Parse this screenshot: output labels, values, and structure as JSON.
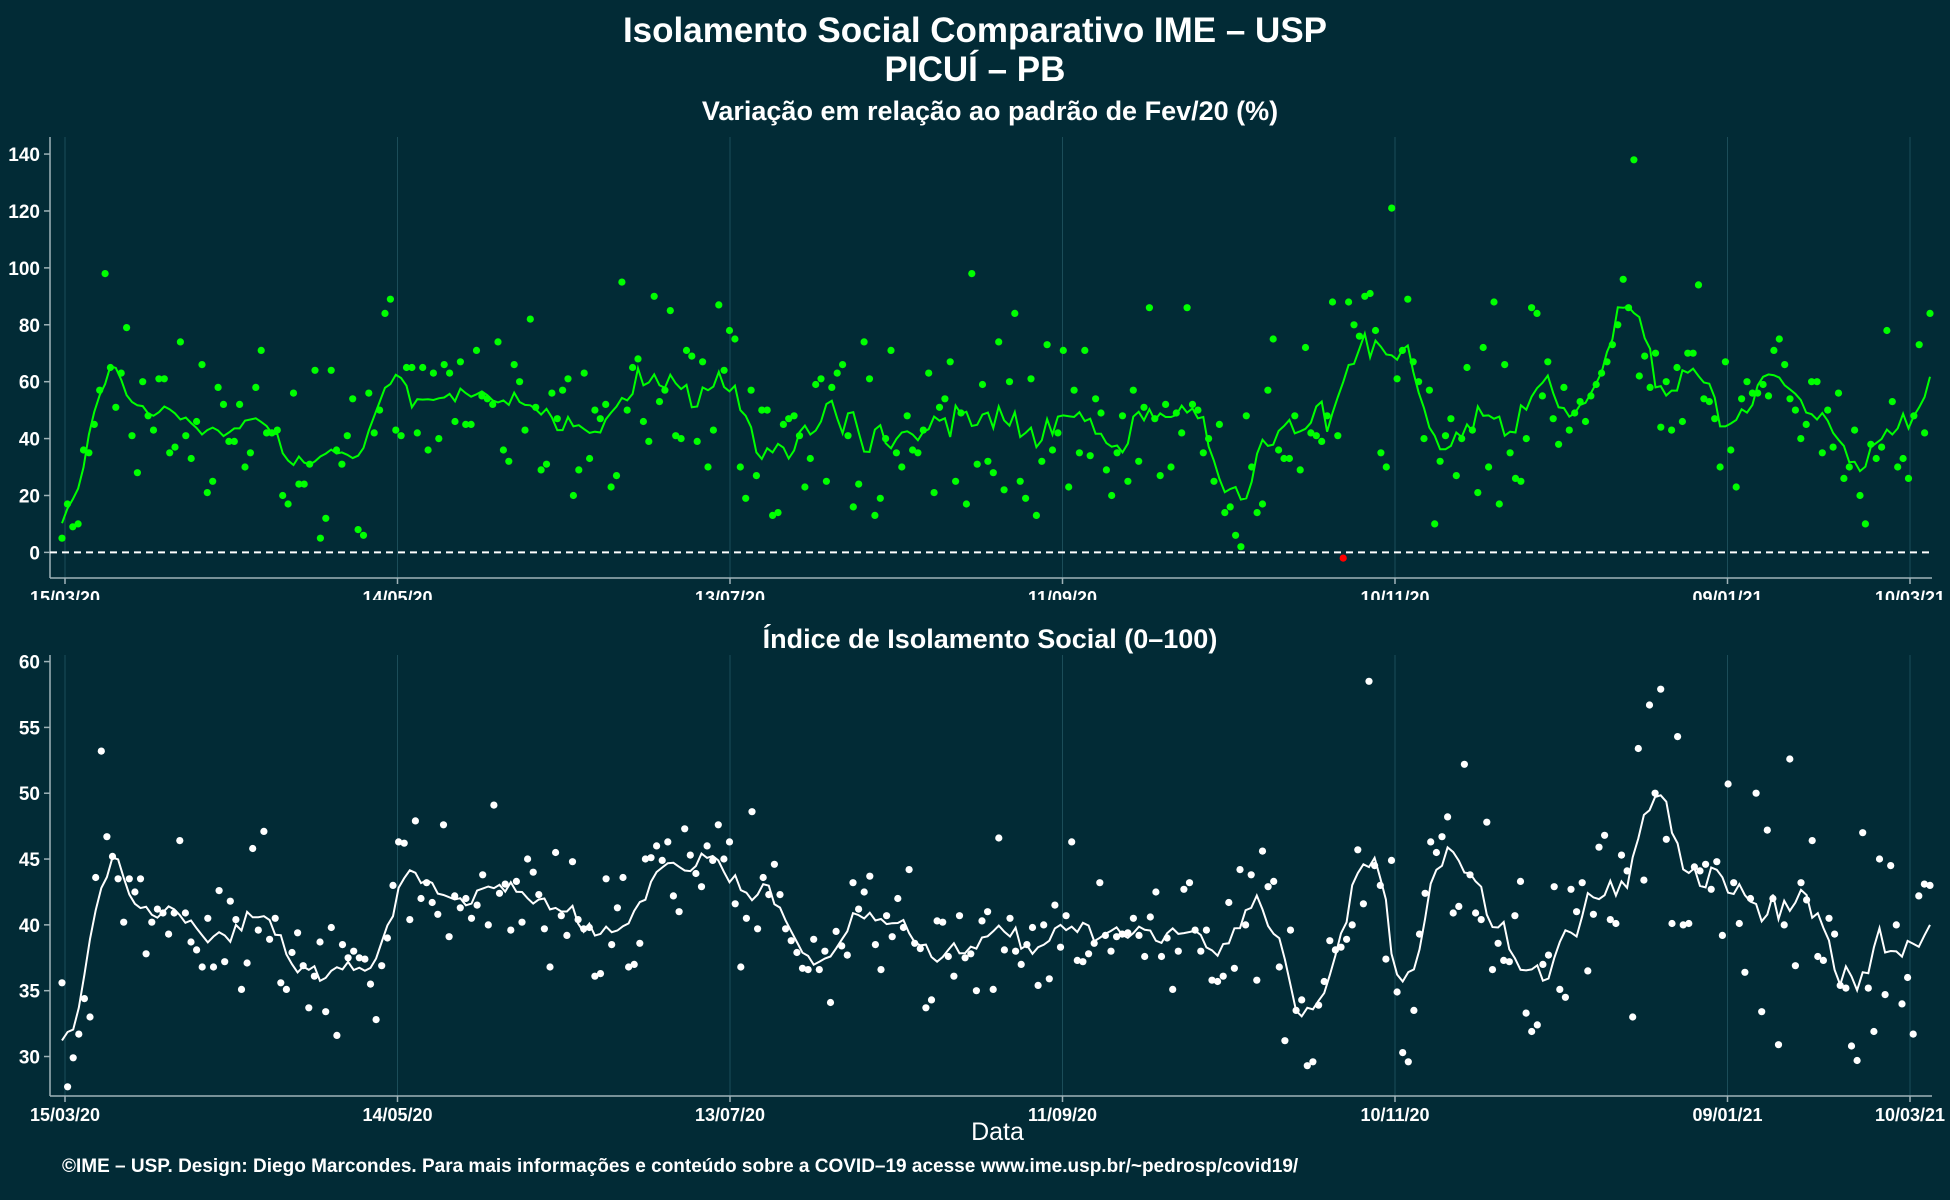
{
  "title_line1": "Isolamento Social Comparativo IME – USP",
  "title_line2": "PICUÍ – PB",
  "xlabel": "Data",
  "footer": "©IME – USP. Design: Diego Marcondes. Para mais informações e conteúdo sobre a COVID–19 acesse www.ime.usp.br/~pedrosp/covid19/",
  "colors": {
    "background": "#022b36",
    "variation": "#00ff00",
    "negative": "#ff0000",
    "index": "#ffffff"
  },
  "chart_data": [
    {
      "type": "scatter",
      "title": "Variação em relação ao padrão de Fev/20 (%)",
      "x_start": "15/03/20",
      "x_tick_labels": [
        "15/03/20",
        "14/05/20",
        "13/07/20",
        "11/09/20",
        "10/11/20",
        "09/01/21",
        "10/03/21"
      ],
      "ylim": [
        -9,
        146
      ],
      "y_ticks": [
        0,
        20,
        40,
        60,
        80,
        100,
        120,
        140
      ],
      "reference_line": 0,
      "series": [
        {
          "values": [
            5,
            17,
            9,
            10,
            36,
            35,
            45,
            57,
            98,
            65,
            51,
            63,
            79,
            41,
            28,
            60,
            48,
            43,
            61,
            61,
            35,
            37,
            74,
            41,
            33,
            46,
            66,
            21,
            25,
            58,
            52,
            39,
            39,
            52,
            30,
            35,
            58,
            71,
            42,
            42,
            43,
            20,
            17,
            56,
            24,
            24,
            31,
            64,
            5,
            12,
            64,
            36,
            31,
            41,
            54,
            8,
            6,
            56,
            42,
            50,
            84,
            89,
            43,
            41,
            65,
            65,
            42,
            65,
            36,
            63,
            40,
            66,
            63,
            46,
            67,
            45,
            45,
            71,
            55,
            54,
            52,
            74,
            36,
            32,
            66,
            60,
            43,
            82,
            51,
            29,
            31,
            56,
            47,
            57,
            61,
            20,
            29,
            63,
            33,
            50,
            47,
            52,
            23,
            27,
            95,
            50,
            65,
            68,
            46,
            39,
            90,
            53,
            57,
            85,
            41,
            40,
            71,
            69,
            39,
            67,
            30,
            43,
            87,
            64,
            78,
            75,
            30,
            19,
            57,
            27,
            50,
            50,
            13,
            14,
            45,
            47,
            48,
            41,
            23,
            33,
            59,
            61,
            25,
            58,
            63,
            66,
            41,
            16,
            24,
            74,
            61,
            13,
            19,
            40,
            71,
            35,
            30,
            48,
            36,
            35,
            43,
            63,
            21,
            51,
            54,
            67,
            25,
            49,
            17,
            98,
            31,
            59,
            32,
            28,
            74,
            22,
            60,
            84,
            25,
            19,
            61,
            13,
            32,
            73,
            36,
            42,
            71,
            23,
            57,
            35,
            71,
            34,
            54,
            49,
            29,
            20,
            35,
            48,
            25,
            57,
            32,
            51,
            86,
            47,
            27,
            52,
            30,
            49,
            42,
            86,
            52,
            50,
            35,
            40,
            25,
            45,
            14,
            16,
            6,
            2,
            48,
            30,
            14,
            17,
            57,
            75,
            36,
            33,
            33,
            48,
            29,
            72,
            42,
            41,
            39,
            48,
            88,
            41,
            -2,
            88,
            80,
            76,
            90,
            91,
            78,
            35,
            30,
            121,
            61,
            71,
            89,
            67,
            60,
            40,
            57,
            10,
            32,
            41,
            47,
            27,
            40,
            65,
            43,
            21,
            72,
            30,
            88,
            17,
            66,
            35,
            26,
            25,
            40,
            86,
            84,
            55,
            67,
            47,
            38,
            58,
            43,
            49,
            53,
            46
          ],
          "tail": [
            55,
            59,
            63,
            67,
            73,
            80,
            96,
            86,
            138,
            62,
            69,
            58,
            70,
            44,
            60,
            43,
            65,
            46,
            70,
            70,
            94,
            54,
            53,
            47,
            30,
            67,
            36,
            23,
            54,
            60,
            56,
            56,
            59,
            55,
            71,
            75,
            66,
            54,
            50,
            40,
            45,
            60,
            60,
            35,
            50,
            37,
            56,
            26,
            30,
            43,
            20,
            10,
            38,
            33,
            37,
            78,
            53,
            30,
            33,
            26,
            48,
            73,
            42,
            84
          ]
        },
        {
          "name": "",
          "note": ""
        }
      ]
    },
    {
      "type": "scatter",
      "title": "Índice de Isolamento Social (0–100)",
      "x_start": "15/03/20",
      "x_tick_labels": [
        "15/03/20",
        "14/05/20",
        "13/07/20",
        "11/09/20",
        "10/11/20",
        "09/01/21",
        "10/03/21"
      ],
      "ylim": [
        27,
        60.5
      ],
      "y_ticks": [
        30,
        35,
        40,
        45,
        50,
        55,
        60
      ],
      "series": [
        {
          "values": [
            35.6,
            27.7,
            29.9,
            31.7,
            34.4,
            33.0,
            43.6,
            53.2,
            46.7,
            45.2,
            43.5,
            40.2,
            43.5,
            42.5,
            43.5,
            37.8,
            40.2,
            41.2,
            40.9,
            39.3,
            40.9,
            46.4,
            40.9,
            38.7,
            38.1,
            36.8,
            40.5,
            36.8,
            42.6,
            37.2,
            41.8,
            40.4,
            35.1,
            37.1,
            45.8,
            39.6,
            47.1,
            38.9,
            40.5,
            35.6,
            35.1,
            37.9,
            39.4,
            36.9,
            33.7,
            36.1,
            38.7,
            33.4,
            39.8,
            31.6,
            38.5,
            37.5,
            38.0,
            37.5,
            37.4,
            35.5,
            32.8,
            36.9,
            39.0,
            43.0,
            46.3,
            46.2,
            40.4,
            47.9,
            42.0,
            43.2,
            41.7,
            40.8,
            47.6,
            39.1,
            42.2,
            41.3,
            42.0,
            40.5,
            41.5,
            43.8,
            40.0,
            49.1,
            42.4,
            43.1,
            39.6,
            43.3,
            40.2,
            45.0,
            44.0,
            42.3,
            39.7,
            36.8,
            45.5,
            40.7,
            39.2,
            44.8,
            40.4,
            39.7,
            39.8,
            36.1,
            36.3,
            43.5,
            38.5,
            41.3,
            43.6,
            36.8,
            37.0,
            38.6,
            45.0,
            45.1,
            46.0,
            44.9,
            46.3,
            42.2,
            41.0,
            47.3,
            45.3,
            43.9,
            42.9,
            46.0,
            44.9,
            47.6,
            45.0,
            46.3,
            41.6,
            36.8,
            40.5,
            48.6,
            39.7,
            43.6,
            42.3,
            44.6,
            42.3,
            39.7,
            38.8,
            37.9,
            36.7,
            36.6,
            38.9,
            36.6,
            38.0,
            34.1,
            39.5,
            38.4,
            37.7,
            43.2,
            41.2,
            42.5,
            43.7,
            38.5,
            36.6,
            40.7,
            39.1,
            42.0,
            39.8,
            44.2,
            38.6,
            38.2,
            33.7,
            34.3,
            40.3,
            40.2,
            37.6,
            36.1,
            40.7,
            37.5,
            37.8,
            35.0,
            40.3,
            41.0,
            35.1,
            46.6,
            38.1,
            40.5,
            38.0,
            37.0,
            38.5,
            39.8,
            35.4,
            40.0,
            35.9,
            41.5,
            38.3,
            40.7,
            46.3,
            37.3,
            37.2,
            37.8,
            38.6,
            43.2,
            39.2,
            38.0,
            39.1,
            39.3,
            39.4,
            40.5,
            39.2,
            37.6,
            40.6,
            42.5,
            37.6,
            39.0,
            35.1,
            38.0,
            42.7,
            43.2,
            39.6,
            38.0,
            39.6,
            35.8,
            35.7,
            36.1,
            41.7,
            36.7,
            44.2,
            40.0,
            43.8,
            35.8,
            45.6,
            42.9,
            43.3,
            36.8,
            31.2,
            39.6,
            33.5,
            34.3,
            29.3,
            29.6,
            33.9,
            35.7,
            38.8,
            38.1,
            38.3,
            38.9,
            40.0,
            45.7,
            41.6,
            58.5,
            44.5,
            43.0,
            37.4,
            44.9,
            34.9,
            30.3,
            29.6,
            33.5,
            39.3,
            42.4,
            46.3,
            45.5,
            46.7,
            48.2,
            40.9,
            41.4,
            52.2,
            43.8,
            40.9,
            40.4,
            47.8,
            36.6,
            38.6,
            37.3,
            37.2,
            40.7,
            43.3,
            33.3,
            31.9,
            32.4,
            37.0,
            37.7,
            42.9,
            35.1,
            34.5,
            42.7,
            41.0,
            43.2,
            36.5,
            40.8,
            45.9,
            46.8,
            40.4,
            40.1,
            45.3,
            44.1,
            33.0,
            53.4,
            43.4,
            56.7,
            50.0,
            57.9,
            46.5,
            40.1,
            54.3,
            40.0,
            40.1,
            44.4,
            44.1,
            44.6,
            42.7,
            44.8,
            39.2,
            50.7,
            43.2,
            40.1,
            36.4,
            42.0,
            50.0,
            33.4,
            47.2,
            42.0,
            30.9,
            40.0,
            52.6,
            36.9,
            43.2,
            41.9,
            46.4,
            37.6,
            37.3,
            40.5,
            39.3,
            35.4,
            35.2,
            30.8,
            29.7,
            47.0,
            35.2,
            31.9,
            45.0,
            34.7,
            44.5,
            40.0,
            34.0,
            36.0,
            31.7,
            42.2,
            43.1,
            43.0
          ]
        }
      ]
    }
  ]
}
